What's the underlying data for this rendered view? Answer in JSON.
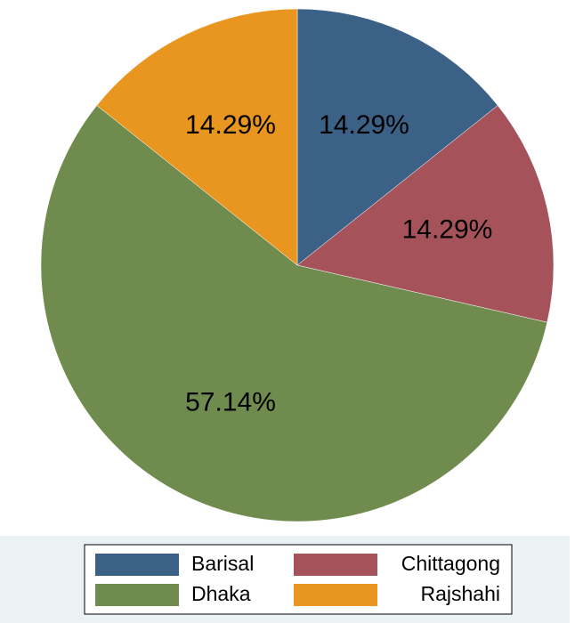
{
  "chart_data": {
    "type": "pie",
    "categories": [
      "Barisal",
      "Chittagong",
      "Dhaka",
      "Rajshahi"
    ],
    "values": [
      14.29,
      14.29,
      57.14,
      14.29
    ],
    "value_labels": [
      "14.29%",
      "14.29%",
      "57.14%",
      "14.29%"
    ],
    "colors": [
      "#3b6186",
      "#a5525a",
      "#6f8c4e",
      "#e8961f"
    ],
    "legend": "bottom"
  }
}
